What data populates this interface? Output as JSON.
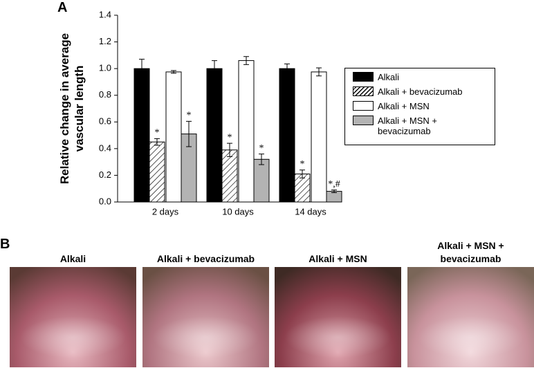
{
  "chart_data": {
    "type": "bar",
    "y_label": "Relative change in average vascular length",
    "categories": [
      "2 days",
      "10 days",
      "14 days"
    ],
    "series": [
      {
        "name": "Alkali",
        "color": "#000000",
        "values": [
          1.0,
          1.0,
          1.0
        ],
        "errors": [
          0.07,
          0.06,
          0.035
        ]
      },
      {
        "name": "Alkali + bevacizumab",
        "color": "#ffffff",
        "hatch": true,
        "values": [
          0.45,
          0.39,
          0.21
        ],
        "errors": [
          0.025,
          0.05,
          0.03
        ],
        "markers": [
          "*",
          "*",
          "*"
        ]
      },
      {
        "name": "Alkali + MSN",
        "color": "#ffffff",
        "values": [
          0.975,
          1.06,
          0.975
        ],
        "errors": [
          0.01,
          0.03,
          0.03
        ]
      },
      {
        "name": "Alkali + MSN + bevacizumab",
        "color": "#b3b3b3",
        "values": [
          0.51,
          0.32,
          0.08
        ],
        "errors": [
          0.095,
          0.04,
          0.01
        ],
        "markers": [
          "*",
          "*",
          "*,#"
        ]
      }
    ],
    "ylim": [
      0,
      1.4
    ],
    "yticks": [
      {
        "value": 0,
        "label": "0.0"
      },
      {
        "value": 0.2,
        "label": "0.2"
      },
      {
        "value": 0.4,
        "label": "0.4"
      },
      {
        "value": 0.6,
        "label": "0.6"
      },
      {
        "value": 0.8,
        "label": "0.8"
      },
      {
        "value": 1.0,
        "label": "1.0"
      },
      {
        "value": 1.2,
        "label": "1.2"
      },
      {
        "value": 1.4,
        "label": "1.4"
      }
    ],
    "legend": "right"
  },
  "panel_labels": [
    "A",
    "B"
  ],
  "photos": [
    {
      "caption": "Alkali"
    },
    {
      "caption": "Alkali + bevacizumab"
    },
    {
      "caption": "Alkali + MSN"
    },
    {
      "caption": "Alkali + MSN + bevacizumab"
    }
  ]
}
